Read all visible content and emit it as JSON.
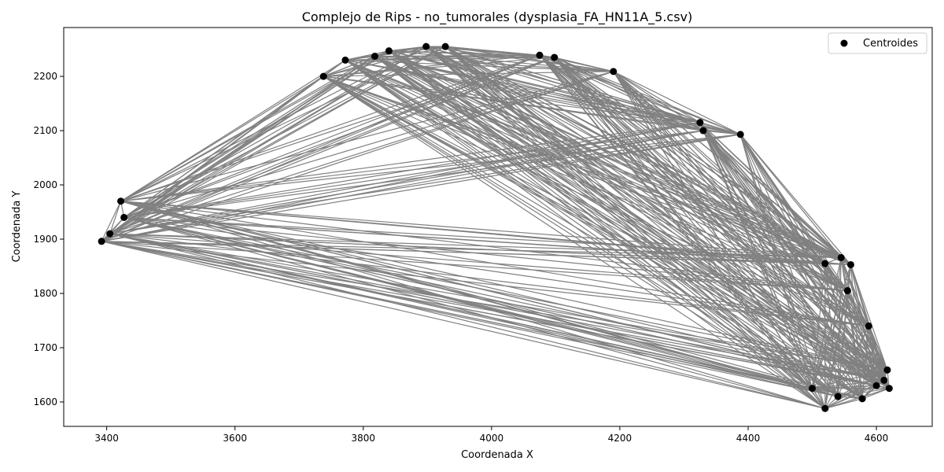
{
  "chart_data": {
    "type": "scatter",
    "title": "Complejo de Rips - no_tumorales (dysplasia_FA_HN11A_5.csv)",
    "xlabel": "Coordenada X",
    "ylabel": "Coordenada Y",
    "xlim": [
      3333,
      4687
    ],
    "ylim": [
      1555,
      2290
    ],
    "xticks": [
      3400,
      3600,
      3800,
      4000,
      4200,
      4400,
      4600
    ],
    "yticks": [
      1600,
      1700,
      1800,
      1900,
      2000,
      2100,
      2200
    ],
    "grid": false,
    "legend": {
      "position": "top-right",
      "entries": [
        "Centroides"
      ]
    },
    "colors": {
      "points": "#000000",
      "edges": "#808080"
    },
    "series": [
      {
        "name": "Centroides",
        "points": [
          [
            3392,
            1896
          ],
          [
            3405,
            1910
          ],
          [
            3422,
            1970
          ],
          [
            3427,
            1940
          ],
          [
            3738,
            2200
          ],
          [
            3772,
            2230
          ],
          [
            3818,
            2237
          ],
          [
            3840,
            2247
          ],
          [
            3898,
            2255
          ],
          [
            3928,
            2255
          ],
          [
            4075,
            2239
          ],
          [
            4098,
            2235
          ],
          [
            4190,
            2209
          ],
          [
            4325,
            2115
          ],
          [
            4388,
            2093
          ],
          [
            4330,
            2100
          ],
          [
            4520,
            1855
          ],
          [
            4545,
            1866
          ],
          [
            4560,
            1853
          ],
          [
            4555,
            1805
          ],
          [
            4588,
            1740
          ],
          [
            4617,
            1659
          ],
          [
            4620,
            1625
          ],
          [
            4612,
            1640
          ],
          [
            4578,
            1606
          ],
          [
            4520,
            1588
          ],
          [
            4540,
            1610
          ],
          [
            4600,
            1630
          ],
          [
            4500,
            1625
          ]
        ]
      }
    ]
  }
}
